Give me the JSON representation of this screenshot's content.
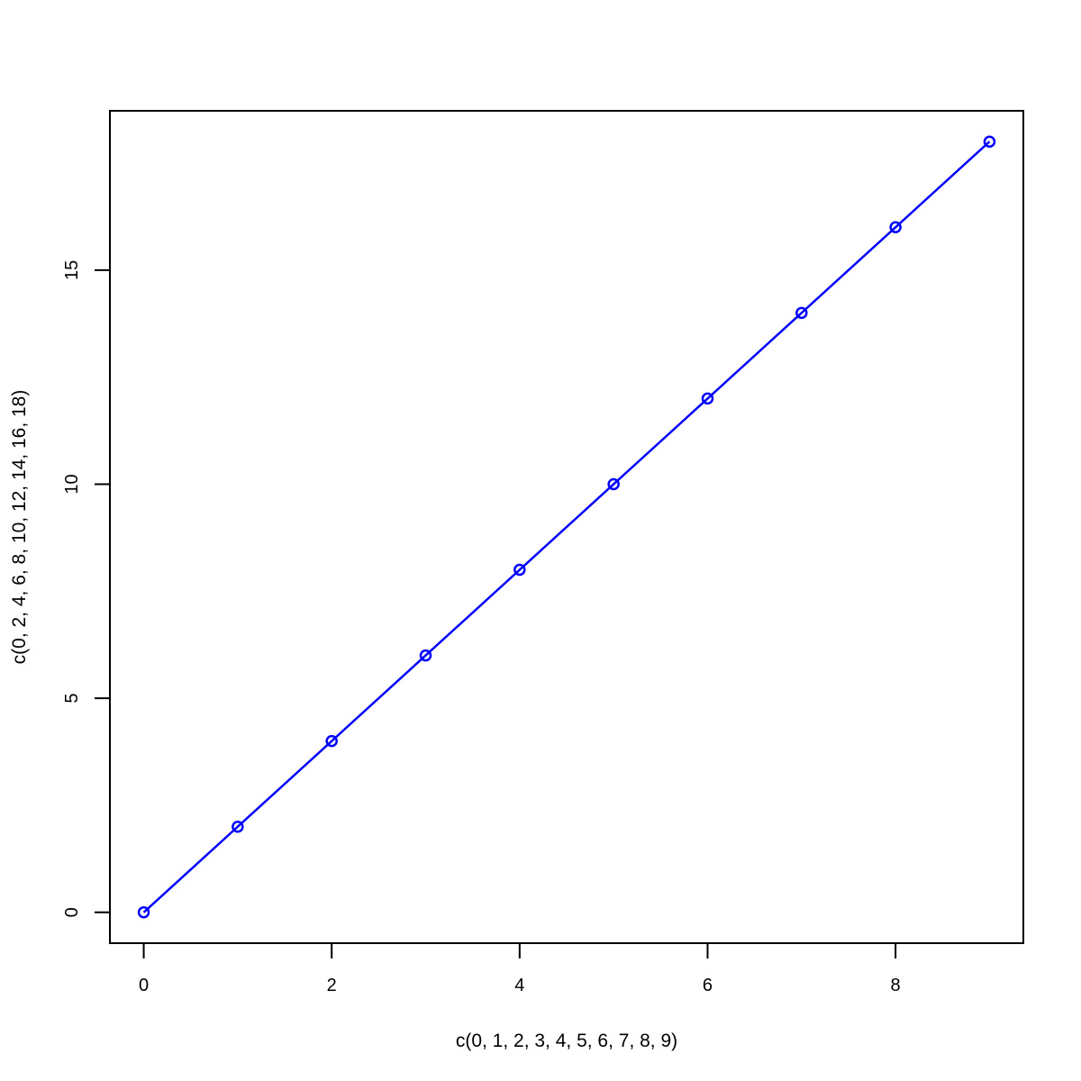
{
  "chart_data": {
    "type": "line",
    "title": "",
    "xlabel": "c(0, 1, 2, 3, 4, 5, 6, 7, 8, 9)",
    "ylabel": "c(0, 2, 4, 6, 8, 10, 12, 14, 16, 18)",
    "x": [
      0,
      1,
      2,
      3,
      4,
      5,
      6,
      7,
      8,
      9
    ],
    "series": [
      {
        "values": [
          0,
          2,
          4,
          6,
          8,
          10,
          12,
          14,
          16,
          18
        ],
        "color": "#0000ff",
        "markers": "open-circle",
        "line": true
      }
    ],
    "xlim": [
      -0.36,
      9.36
    ],
    "ylim": [
      -0.72,
      18.72
    ],
    "xticks": [
      0,
      2,
      4,
      6,
      8
    ],
    "yticks": [
      0,
      5,
      10,
      15
    ],
    "grid": false,
    "legend": "none"
  }
}
